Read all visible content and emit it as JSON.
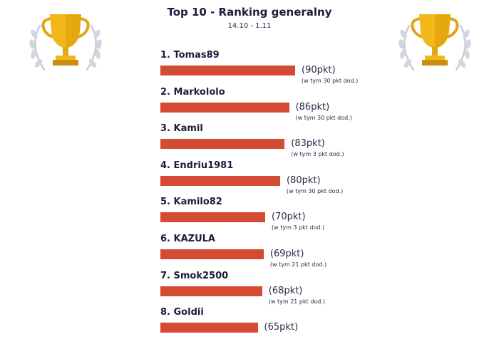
{
  "header": {
    "title": "Top 10 - Ranking generalny",
    "date_range": "14.10 - 1.11"
  },
  "icons": {
    "left": "trophy-laurel-icon",
    "right": "trophy-laurel-icon"
  },
  "colors": {
    "bar": "#d54a33",
    "text": "#1c1c3c",
    "trophy_gold": "#f2b81a",
    "laurel": "#c9ccd6"
  },
  "chart_data": {
    "type": "bar",
    "orientation": "horizontal",
    "title": "Top 10 - Ranking generalny",
    "subtitle": "14.10 - 1.11",
    "categories": [
      "1. Tomas89",
      "2. Markololo",
      "3. Kamil",
      "4. Endriu1981",
      "5. Kamilo82",
      "6. KAZULA",
      "7. Smok2500",
      "8. Goldii"
    ],
    "values": [
      90,
      86,
      83,
      80,
      70,
      69,
      68,
      65
    ],
    "value_labels": [
      "(90pkt)",
      "(86pkt)",
      "(83pkt)",
      "(80pkt)",
      "(70pkt)",
      "(69pkt)",
      "(68pkt)",
      "(65pkt)"
    ],
    "annotations": [
      "(w tym 30 pkt dod.)",
      "(w tym 30 pkt dod.)",
      "(w tym 3 pkt dod.)",
      "(w tym 30 pkt dod.)",
      "(w tym 3 pkt dod.)",
      "(w tym 21 pkt dod.)",
      "(w tym 21 pkt dod.)",
      ""
    ],
    "bonus_points": [
      30,
      30,
      3,
      30,
      3,
      21,
      21,
      null
    ],
    "xlim": [
      0,
      90
    ],
    "grid": false,
    "legend": "none"
  }
}
